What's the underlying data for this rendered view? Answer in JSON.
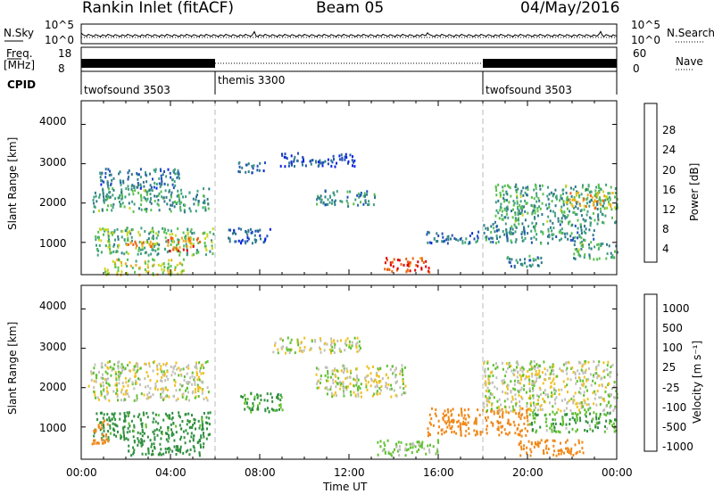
{
  "header": {
    "station": "Rankin Inlet (fitACF)",
    "beam": "Beam 05",
    "date": "04/May/2016"
  },
  "strips": {
    "nsky_label": "N.Sky",
    "nsky_ticks": [
      "10^5",
      "10^0"
    ],
    "nsearch_label": "N.Search",
    "nsearch_ticks": [
      "10^5",
      "10^0"
    ],
    "freq_label": "Freq.",
    "freq_unit": "[MHz]",
    "freq_ticks": [
      "18",
      "8"
    ],
    "nave_label": "Nave",
    "nave_ticks": [
      "60",
      "0"
    ],
    "cpid_label": "CPID",
    "cpid_segments": [
      {
        "name": "twofsound 3503",
        "start_h": 0,
        "end_h": 6
      },
      {
        "name": "themis 3300",
        "start_h": 6,
        "end_h": 18
      },
      {
        "name": "twofsound 3503",
        "start_h": 18,
        "end_h": 24
      }
    ]
  },
  "panels": {
    "power": {
      "ylabel": "Slant Range [km]",
      "ticks": [
        "4000",
        "3000",
        "2000",
        "1000"
      ]
    },
    "velocity": {
      "ylabel": "Slant Range [km]",
      "ticks": [
        "4000",
        "3000",
        "2000",
        "1000"
      ]
    }
  },
  "power_bar": {
    "label": "Power [dB]",
    "ticks": [
      "28",
      "24",
      "20",
      "16",
      "12",
      "8",
      "4"
    ],
    "colors": [
      "#0a22e0",
      "#2050b8",
      "#307a8a",
      "#40a080",
      "#58c050",
      "#c8d820",
      "#f0a818",
      "#f06010",
      "#e00000"
    ]
  },
  "velocity_bar": {
    "label": "Velocity [m s⁻¹]",
    "ticks": [
      "1000",
      "500",
      "100",
      "25",
      "-25",
      "-100",
      "-500",
      "-1000"
    ],
    "colors": [
      "#1e3ca0",
      "#206080",
      "#309040",
      "#60c030",
      "#c0c0b8",
      "#f0c020",
      "#f08818",
      "#e85010",
      "#e00000"
    ]
  },
  "xaxis": {
    "label": "Time UT",
    "ticks": [
      "00:00",
      "04:00",
      "08:00",
      "12:00",
      "16:00",
      "20:00",
      "00:00"
    ]
  },
  "chart_data": [
    {
      "type": "heatmap",
      "title": "Power",
      "xlabel": "Time UT",
      "ylabel": "Slant Range [km]",
      "xlim": [
        0,
        24
      ],
      "ylim": [
        180,
        4600
      ],
      "clim": [
        0,
        30
      ],
      "colorbar_label": "Power [dB]",
      "colorbar_ticks": [
        4,
        8,
        12,
        16,
        20,
        24,
        28
      ],
      "blobs": [
        {
          "t0": 0.5,
          "t1": 5.7,
          "r0": 1800,
          "r1": 2400,
          "value": 12
        },
        {
          "t0": 0.8,
          "t1": 4.4,
          "r0": 2400,
          "r1": 2900,
          "value": 8
        },
        {
          "t0": 0.6,
          "t1": 5.9,
          "r0": 700,
          "r1": 1400,
          "value": 14
        },
        {
          "t0": 3.8,
          "t1": 5.3,
          "r0": 800,
          "r1": 1150,
          "value": 24
        },
        {
          "t0": 2.0,
          "t1": 3.4,
          "r0": 900,
          "r1": 1050,
          "value": 22
        },
        {
          "t0": 1.0,
          "t1": 4.6,
          "r0": 200,
          "r1": 600,
          "value": 18
        },
        {
          "t0": 7.0,
          "t1": 8.2,
          "r0": 2800,
          "r1": 3100,
          "value": 6
        },
        {
          "t0": 8.9,
          "t1": 12.3,
          "r0": 2950,
          "r1": 3300,
          "value": 5
        },
        {
          "t0": 10.5,
          "t1": 13.2,
          "r0": 1950,
          "r1": 2350,
          "value": 10
        },
        {
          "t0": 6.5,
          "t1": 8.5,
          "r0": 1000,
          "r1": 1400,
          "value": 5
        },
        {
          "t0": 13.5,
          "t1": 15.6,
          "r0": 250,
          "r1": 650,
          "value": 27
        },
        {
          "t0": 15.4,
          "t1": 17.8,
          "r0": 1000,
          "r1": 1300,
          "value": 8
        },
        {
          "t0": 18.5,
          "t1": 24.0,
          "r0": 1500,
          "r1": 2500,
          "value": 12
        },
        {
          "t0": 21.7,
          "t1": 24.0,
          "r0": 1900,
          "r1": 2300,
          "value": 20
        },
        {
          "t0": 18.0,
          "t1": 23.0,
          "r0": 1000,
          "r1": 1500,
          "value": 10
        },
        {
          "t0": 19.0,
          "t1": 20.8,
          "r0": 400,
          "r1": 700,
          "value": 10
        },
        {
          "t0": 22.0,
          "t1": 24.0,
          "r0": 600,
          "r1": 1000,
          "value": 12
        }
      ]
    },
    {
      "type": "heatmap",
      "title": "Velocity",
      "xlabel": "Time UT",
      "ylabel": "Slant Range [km]",
      "xlim": [
        0,
        24
      ],
      "ylim": [
        180,
        4600
      ],
      "clim": [
        -1000,
        1000
      ],
      "colorbar_label": "Velocity [m s⁻¹]",
      "colorbar_ticks": [
        1000,
        500,
        100,
        25,
        -25,
        -100,
        -500,
        -1000
      ],
      "blobs": [
        {
          "t0": 0.3,
          "t1": 5.7,
          "r0": 1700,
          "r1": 2700,
          "value": 0
        },
        {
          "t0": 0.5,
          "t1": 5.8,
          "r0": 700,
          "r1": 1400,
          "value": 150
        },
        {
          "t0": 0.4,
          "t1": 1.2,
          "r0": 600,
          "r1": 1200,
          "value": -300
        },
        {
          "t0": 2.0,
          "t1": 5.5,
          "r0": 300,
          "r1": 700,
          "value": 300
        },
        {
          "t0": 7.0,
          "t1": 9.0,
          "r0": 1400,
          "r1": 1900,
          "value": 120
        },
        {
          "t0": 8.5,
          "t1": 12.5,
          "r0": 2900,
          "r1": 3300,
          "value": 0
        },
        {
          "t0": 10.5,
          "t1": 14.5,
          "r0": 1800,
          "r1": 2600,
          "value": 0
        },
        {
          "t0": 13.2,
          "t1": 16.0,
          "r0": 300,
          "r1": 700,
          "value": 40
        },
        {
          "t0": 15.5,
          "t1": 20.0,
          "r0": 800,
          "r1": 1500,
          "value": -200
        },
        {
          "t0": 18.0,
          "t1": 24.0,
          "r0": 1400,
          "r1": 2700,
          "value": 0
        },
        {
          "t0": 20.0,
          "t1": 24.0,
          "r0": 900,
          "r1": 1400,
          "value": 80
        },
        {
          "t0": 19.5,
          "t1": 22.5,
          "r0": 300,
          "r1": 700,
          "value": -200
        }
      ]
    }
  ]
}
